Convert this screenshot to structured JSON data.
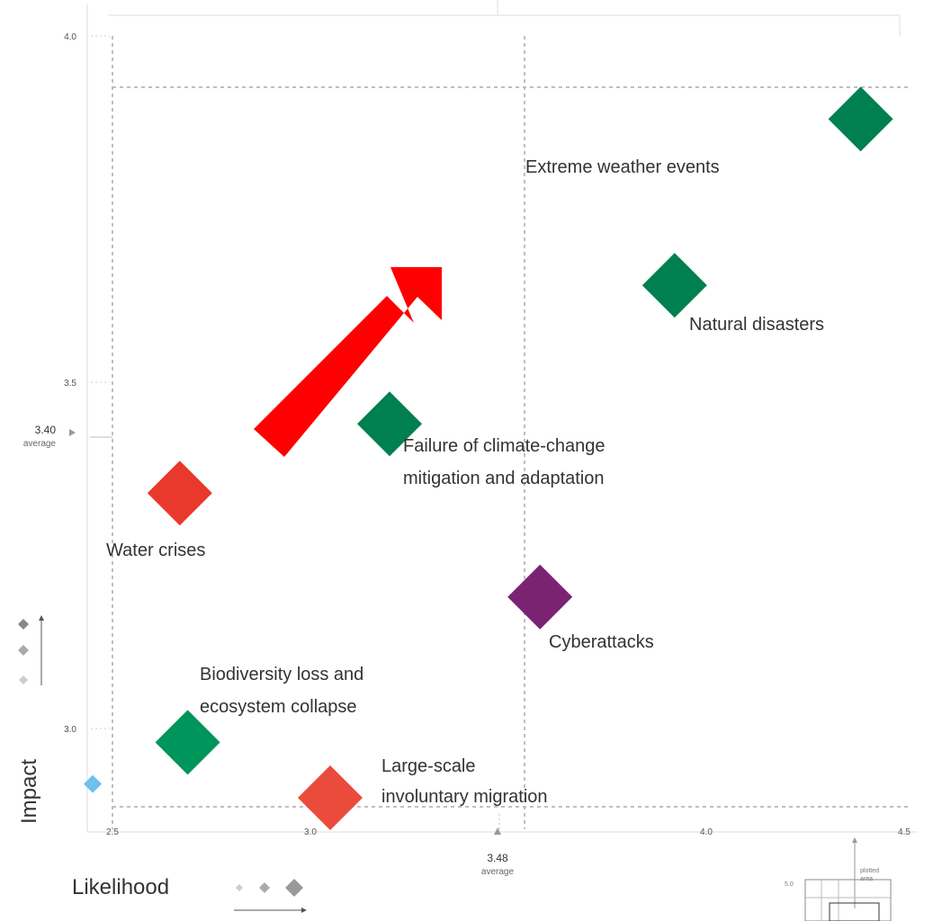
{
  "chart_data": {
    "type": "scatter",
    "xlabel": "Likelihood",
    "ylabel": "Impact",
    "xlim": [
      2.5,
      4.5
    ],
    "ylim": [
      2.85,
      4.0
    ],
    "x_ticks": [
      "2.5",
      "3.0",
      "4.0",
      "4.5"
    ],
    "y_ticks": [
      "3.0",
      "3.5",
      "4.0"
    ],
    "x_average": {
      "value": "3.48",
      "label": "average"
    },
    "y_average": {
      "value": "3.40",
      "label": "average"
    },
    "grid": true,
    "points": [
      {
        "name": "Extreme weather events",
        "x": 4.39,
        "y": 3.88,
        "color": "#008050"
      },
      {
        "name": "Natural disasters",
        "x": 3.92,
        "y": 3.64,
        "color": "#008050"
      },
      {
        "name": "Failure of climate-change mitigation and adaptation",
        "x": 3.2,
        "y": 3.44,
        "color": "#008050"
      },
      {
        "name": "Water crises",
        "x": 2.67,
        "y": 3.34,
        "color": "#e8392c"
      },
      {
        "name": "Cyberattacks",
        "x": 3.58,
        "y": 3.19,
        "color": "#7b2272"
      },
      {
        "name": "Biodiversity loss and ecosystem collapse",
        "x": 2.69,
        "y": 2.98,
        "color": "#00955a"
      },
      {
        "name": "Large-scale involuntary migration",
        "x": 3.05,
        "y": 2.9,
        "color": "#eb4b3c"
      },
      {
        "name": "",
        "x": 2.45,
        "y": 2.92,
        "color": "#6fc0ec"
      }
    ],
    "trend_arrow_color": "#ff0000",
    "inset": {
      "tick": "5.0",
      "label": "plotted area"
    }
  }
}
